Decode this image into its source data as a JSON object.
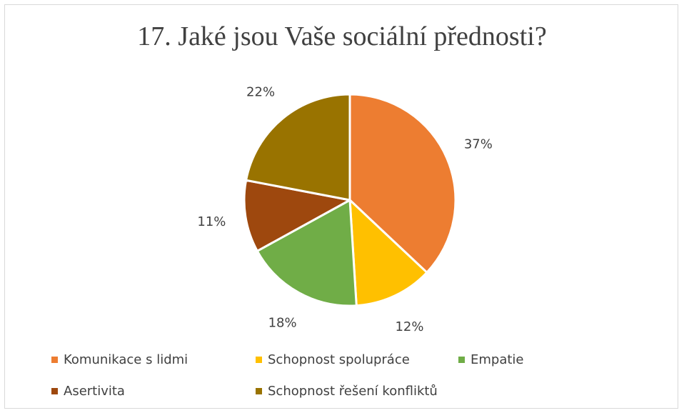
{
  "chart_data": {
    "type": "pie",
    "title": "17. Jaké jsou Vaše sociální přednosti?",
    "categories": [
      "Komunikace s lidmi",
      "Schopnost spolupráce",
      "Empatie",
      "Asertivita",
      "Schopnost řešení konfliktů"
    ],
    "values": [
      37,
      12,
      18,
      11,
      22
    ],
    "value_labels": [
      "37%",
      "12%",
      "18%",
      "11%",
      "22%"
    ],
    "colors": [
      "#ED7D31",
      "#FFC000",
      "#70AD47",
      "#9E480E",
      "#997300"
    ],
    "legend_position": "bottom",
    "start_angle": "12 o'clock, clockwise"
  }
}
